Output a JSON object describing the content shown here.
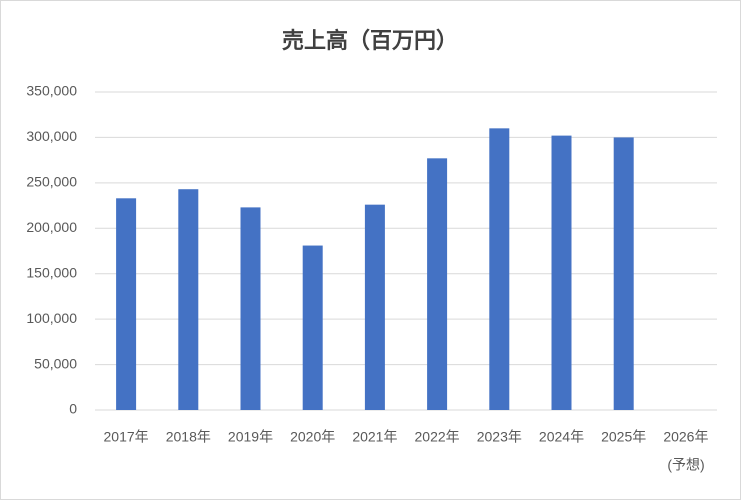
{
  "chart_data": {
    "type": "bar",
    "title": "売上高（百万円）",
    "categories": [
      "2017年",
      "2018年",
      "2019年",
      "2020年",
      "2021年",
      "2022年",
      "2023年",
      "2024年",
      "2025年",
      "2026年"
    ],
    "category_note": "(予想)",
    "values": [
      233000,
      243000,
      223000,
      181000,
      226000,
      277000,
      310000,
      302000,
      300000,
      null
    ],
    "color": "#4472c4",
    "ylim": [
      0,
      350000
    ],
    "yticks": [
      0,
      {
        "value": 50000,
        "label": "50,000"
      },
      {
        "value": 100000,
        "label": "100,000"
      },
      {
        "value": 150000,
        "label": "150,000"
      },
      {
        "value": 200000,
        "label": "200,000"
      },
      {
        "value": 250000,
        "label": "250,000"
      },
      {
        "value": 300000,
        "label": "300,000"
      },
      {
        "value": 350000,
        "label": "350,000"
      }
    ],
    "grid": true
  }
}
